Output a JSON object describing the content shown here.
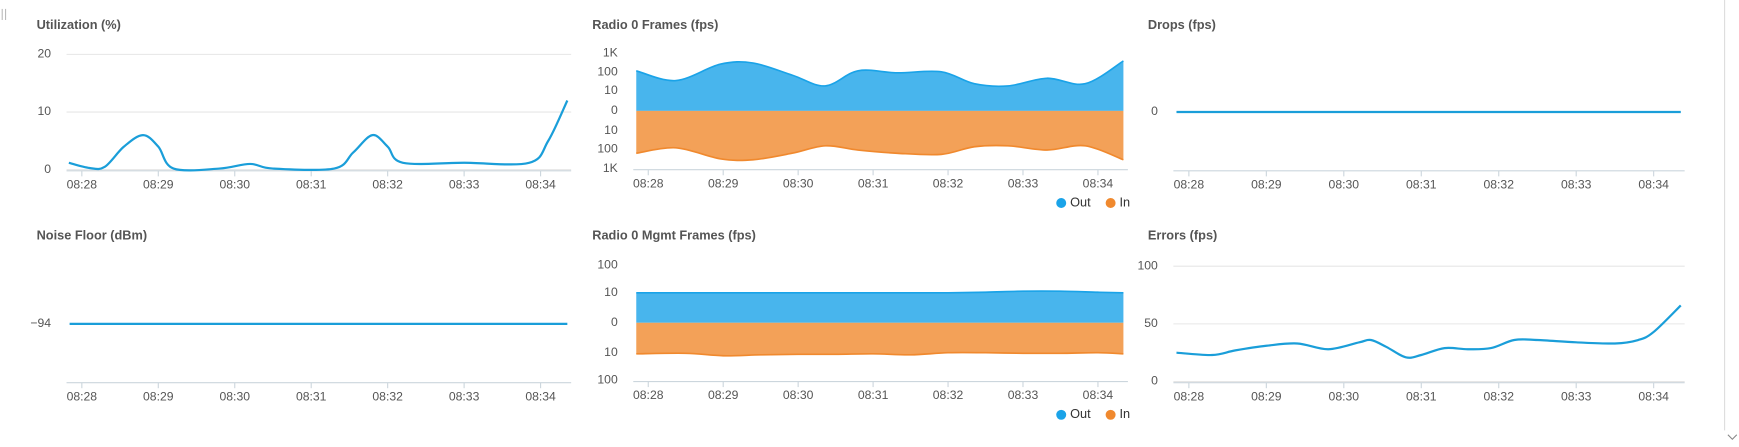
{
  "chart_data": [
    {
      "type": "line",
      "title": "Utilization (%)",
      "color": "#1a9ed9",
      "x": [
        27.83,
        28.1,
        28.3,
        28.55,
        28.8,
        29.0,
        29.2,
        29.8,
        30.2,
        30.5,
        31.3,
        31.55,
        31.8,
        32.0,
        32.2,
        33.0,
        33.85,
        34.1,
        34.35
      ],
      "values": [
        1.2,
        0.3,
        0.5,
        4,
        6,
        4,
        0.2,
        0.2,
        1,
        0.2,
        0.2,
        3,
        6,
        4,
        1.2,
        1.2,
        1.2,
        5,
        12
      ],
      "xlim": [
        27.8,
        34.4
      ],
      "xticks": [
        {
          "value": 28,
          "label": "08:28"
        },
        {
          "value": 29,
          "label": "08:29"
        },
        {
          "value": 30,
          "label": "08:30"
        },
        {
          "value": 31,
          "label": "08:31"
        },
        {
          "value": 32,
          "label": "08:32"
        },
        {
          "value": 33,
          "label": "08:33"
        },
        {
          "value": 34,
          "label": "08:34"
        }
      ],
      "ylim": [
        0,
        20
      ],
      "yticks": [
        0,
        10,
        20
      ],
      "grid": true
    },
    {
      "type": "area",
      "title": "Radio 0 Frames (fps)",
      "mirrored": true,
      "log_scale": true,
      "legend": "bottom-right",
      "x": [
        27.84,
        28.37,
        28.96,
        29.4,
        29.92,
        30.36,
        30.8,
        31.32,
        31.91,
        32.35,
        32.8,
        33.32,
        33.83,
        34.34
      ],
      "series": [
        {
          "name": "Out",
          "color": "#1aa3e8",
          "side": "upper",
          "values": [
            122,
            37,
            268,
            308,
            72,
            19,
            122,
            95,
            107,
            25,
            19,
            49,
            25,
            397
          ]
        },
        {
          "name": "In",
          "color": "#f0892e",
          "side": "lower",
          "values": [
            158,
            82,
            308,
            346,
            158,
            64,
            107,
            158,
            181,
            72,
            64,
            107,
            64,
            346
          ]
        }
      ],
      "xlim": [
        27.8,
        34.4
      ],
      "xticks": [
        {
          "value": 28,
          "label": "08:28"
        },
        {
          "value": 29,
          "label": "08:29"
        },
        {
          "value": 30,
          "label": "08:30"
        },
        {
          "value": 31,
          "label": "08:31"
        },
        {
          "value": 32,
          "label": "08:32"
        },
        {
          "value": 33,
          "label": "08:33"
        },
        {
          "value": 34,
          "label": "08:34"
        }
      ],
      "ylim": [
        0,
        1000
      ],
      "yticks": [
        {
          "value": 1000,
          "label": "1K"
        },
        100,
        10,
        0
      ],
      "y_lower_ticks": [
        10,
        100,
        {
          "value": 1000,
          "label": "1K"
        }
      ]
    },
    {
      "type": "line",
      "title": "Drops (fps)",
      "color": "#1a9ed9",
      "x": [
        27.84,
        34.35
      ],
      "values": [
        0,
        0
      ],
      "xlim": [
        27.8,
        34.4
      ],
      "xticks": [
        {
          "value": 28,
          "label": "08:28"
        },
        {
          "value": 29,
          "label": "08:29"
        },
        {
          "value": 30,
          "label": "08:30"
        },
        {
          "value": 31,
          "label": "08:31"
        },
        {
          "value": 32,
          "label": "08:32"
        },
        {
          "value": 33,
          "label": "08:33"
        },
        {
          "value": 34,
          "label": "08:34"
        }
      ],
      "ylim": [
        -1,
        1
      ],
      "yticks": [
        0
      ],
      "grid": false
    },
    {
      "type": "line",
      "title": "Noise Floor (dBm)",
      "color": "#1a9ed9",
      "x": [
        27.84,
        34.35
      ],
      "values": [
        -94,
        -94
      ],
      "xlim": [
        27.8,
        34.4
      ],
      "xticks": [
        {
          "value": 28,
          "label": "08:28"
        },
        {
          "value": 29,
          "label": "08:29"
        },
        {
          "value": 30,
          "label": "08:30"
        },
        {
          "value": 31,
          "label": "08:31"
        },
        {
          "value": 32,
          "label": "08:32"
        },
        {
          "value": 33,
          "label": "08:33"
        },
        {
          "value": 34,
          "label": "08:34"
        }
      ],
      "ylim": [
        -95,
        -93
      ],
      "yticks": [
        {
          "value": -94,
          "label": "−94"
        }
      ],
      "grid": false
    },
    {
      "type": "area",
      "title": "Radio 0 Mgmt Frames (fps)",
      "mirrored": true,
      "log_scale": true,
      "legend": "bottom-right",
      "x": [
        27.84,
        28.5,
        29.0,
        29.5,
        30.0,
        30.5,
        31.0,
        31.5,
        32.0,
        32.5,
        33.0,
        33.5,
        34.0,
        34.34
      ],
      "series": [
        {
          "name": "Out",
          "color": "#1aa3e8",
          "side": "upper",
          "values": [
            10,
            10,
            10,
            10,
            10,
            10,
            10,
            10,
            10,
            10.5,
            11.5,
            11.5,
            10.5,
            10
          ]
        },
        {
          "name": "In",
          "color": "#f0892e",
          "side": "lower",
          "values": [
            11,
            10.5,
            13,
            12,
            11.5,
            11.5,
            11,
            12,
            10,
            10,
            10.5,
            10.5,
            10,
            11
          ]
        }
      ],
      "xlim": [
        27.8,
        34.4
      ],
      "xticks": [
        {
          "value": 28,
          "label": "08:28"
        },
        {
          "value": 29,
          "label": "08:29"
        },
        {
          "value": 30,
          "label": "08:30"
        },
        {
          "value": 31,
          "label": "08:31"
        },
        {
          "value": 32,
          "label": "08:32"
        },
        {
          "value": 33,
          "label": "08:33"
        },
        {
          "value": 34,
          "label": "08:34"
        }
      ],
      "ylim": [
        0,
        100
      ],
      "yticks": [
        100,
        10,
        0
      ],
      "y_lower_ticks": [
        10,
        100
      ]
    },
    {
      "type": "line",
      "title": "Errors (fps)",
      "color": "#1a9ed9",
      "x": [
        27.84,
        28.3,
        28.6,
        29.0,
        29.4,
        29.8,
        30.2,
        30.35,
        30.55,
        30.8,
        31.0,
        31.3,
        31.6,
        31.9,
        32.2,
        32.5,
        33.0,
        33.5,
        33.8,
        34.0,
        34.35
      ],
      "values": [
        25,
        23,
        27,
        31,
        33,
        28,
        34,
        36,
        30,
        21,
        23,
        29,
        28,
        29,
        36,
        36,
        34,
        33,
        36,
        43,
        66
      ],
      "xlim": [
        27.8,
        34.4
      ],
      "xticks": [
        {
          "value": 28,
          "label": "08:28"
        },
        {
          "value": 29,
          "label": "08:29"
        },
        {
          "value": 30,
          "label": "08:30"
        },
        {
          "value": 31,
          "label": "08:31"
        },
        {
          "value": 32,
          "label": "08:32"
        },
        {
          "value": 33,
          "label": "08:33"
        },
        {
          "value": 34,
          "label": "08:34"
        }
      ],
      "ylim": [
        0,
        100
      ],
      "yticks": [
        0,
        50,
        100
      ],
      "grid": true
    }
  ]
}
